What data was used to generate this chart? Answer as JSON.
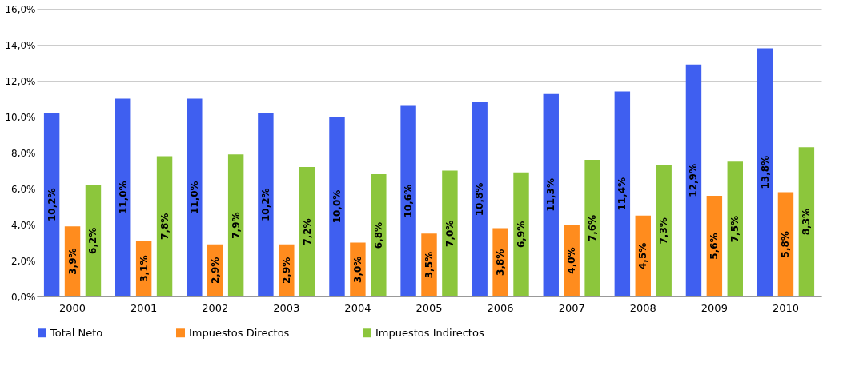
{
  "chart_data": {
    "type": "bar",
    "categories": [
      "2000",
      "2001",
      "2002",
      "2003",
      "2004",
      "2005",
      "2006",
      "2007",
      "2008",
      "2009",
      "2010"
    ],
    "series": [
      {
        "name": "Total Neto",
        "color": "#3f5ff0",
        "values": [
          10.2,
          11.0,
          11.0,
          10.2,
          10.0,
          10.6,
          10.8,
          11.3,
          11.4,
          12.9,
          13.8
        ],
        "value_labels": [
          "10,2%",
          "11,0%",
          "11,0%",
          "10,2%",
          "10,0%",
          "10,6%",
          "10,8%",
          "11,3%",
          "11,4%",
          "12,9%",
          "13,8%"
        ]
      },
      {
        "name": "Impuestos Directos",
        "color": "#ff8c1e",
        "values": [
          3.9,
          3.1,
          2.9,
          2.9,
          3.0,
          3.5,
          3.8,
          4.0,
          4.5,
          5.6,
          5.8
        ],
        "value_labels": [
          "3,9%",
          "3,1%",
          "2,9%",
          "2,9%",
          "3,0%",
          "3,5%",
          "3,8%",
          "4,0%",
          "4,5%",
          "5,6%",
          "5,8%"
        ]
      },
      {
        "name": "Impuestos Indirectos",
        "color": "#8cc63c",
        "values": [
          6.2,
          7.8,
          7.9,
          7.2,
          6.8,
          7.0,
          6.9,
          7.6,
          7.3,
          7.5,
          8.3
        ],
        "value_labels": [
          "6,2%",
          "7,8%",
          "7,9%",
          "7,2%",
          "6,8%",
          "7,0%",
          "6,9%",
          "7,6%",
          "7,3%",
          "7,5%",
          "8,3%"
        ]
      }
    ],
    "ylim": [
      0,
      16
    ],
    "yticks": [
      {
        "value": 0,
        "label": "0,0%"
      },
      {
        "value": 2,
        "label": "2,0%"
      },
      {
        "value": 4,
        "label": "4,0%"
      },
      {
        "value": 6,
        "label": "6,0%"
      },
      {
        "value": 8,
        "label": "8,0%"
      },
      {
        "value": 10,
        "label": "10,0%"
      },
      {
        "value": 12,
        "label": "12,0%"
      },
      {
        "value": 14,
        "label": "14,0%"
      },
      {
        "value": 16,
        "label": "16,0%"
      }
    ],
    "grid": "y",
    "legend": "bottom"
  }
}
